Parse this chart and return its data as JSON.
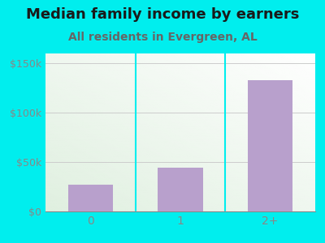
{
  "categories": [
    "0",
    "1",
    "2+"
  ],
  "values": [
    27000,
    44000,
    133000
  ],
  "bar_color": "#b8a0cc",
  "title": "Median family income by earners",
  "subtitle": "All residents in Evergreen, AL",
  "title_fontsize": 13,
  "subtitle_fontsize": 10,
  "title_color": "#1a1a1a",
  "subtitle_color": "#666666",
  "background_color": "#00eeee",
  "ylim": [
    0,
    160000
  ],
  "yticks": [
    0,
    50000,
    100000,
    150000
  ],
  "ytick_labels": [
    "$0",
    "$50k",
    "$100k",
    "$150k"
  ],
  "tick_color": "#888888",
  "grid_color": "#cccccc",
  "grid_linewidth": 0.7,
  "plot_grad_top_color": "#ffffff",
  "plot_grad_bottom_color": "#e0f0e0",
  "divider_color": "#00eeee",
  "bar_width": 0.5
}
